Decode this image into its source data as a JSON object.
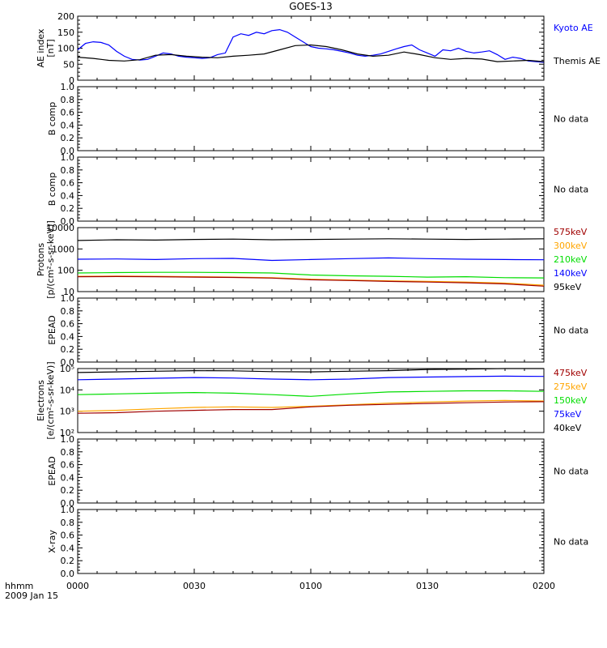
{
  "title": "GOES-13",
  "time_axis": {
    "label_top": "hhmm",
    "label_bottom": "2009 Jan 15",
    "ticks": [
      "0000",
      "0030",
      "0100",
      "0130",
      "0200"
    ],
    "range_minutes": [
      0,
      120
    ]
  },
  "colors": {
    "black": "#000000",
    "blue": "#0000ff",
    "green": "#00dd00",
    "orange": "#ffa500",
    "darkred": "#a00000"
  },
  "panels": [
    {
      "id": "ae",
      "ylabel": [
        "AE index",
        "[nT]"
      ],
      "scale": "linear",
      "ylim": [
        0,
        200
      ],
      "yticks": [
        "0",
        "50",
        "100",
        "150",
        "200"
      ],
      "legend": [
        {
          "text": "Kyoto AE",
          "color": "#0000ff"
        },
        {
          "text": "Themis AE",
          "color": "#000000"
        }
      ]
    },
    {
      "id": "bcomp1",
      "ylabel": [
        "B comp"
      ],
      "scale": "linear",
      "ylim": [
        0,
        1
      ],
      "yticks": [
        "0.0",
        "0.2",
        "0.4",
        "0.6",
        "0.8",
        "1.0"
      ],
      "nodata": "No data"
    },
    {
      "id": "bcomp2",
      "ylabel": [
        "B comp"
      ],
      "scale": "linear",
      "ylim": [
        0,
        1
      ],
      "yticks": [
        "0.0",
        "0.2",
        "0.4",
        "0.6",
        "0.8",
        "1.0"
      ],
      "nodata": "No data"
    },
    {
      "id": "protons",
      "ylabel": [
        "Protons",
        "[p/(cm²-s-sr-keV)]"
      ],
      "scale": "log",
      "ylim": [
        10,
        10000
      ],
      "yticks": [
        "10",
        "100",
        "1000",
        "10000"
      ],
      "legend": [
        {
          "text": "575keV",
          "color": "#a00000"
        },
        {
          "text": "300keV",
          "color": "#ffa500"
        },
        {
          "text": "210keV",
          "color": "#00dd00"
        },
        {
          "text": "140keV",
          "color": "#0000ff"
        },
        {
          "text": "95keV",
          "color": "#000000"
        }
      ]
    },
    {
      "id": "epead1",
      "ylabel": [
        "EPEAD"
      ],
      "scale": "linear",
      "ylim": [
        0,
        1
      ],
      "yticks": [
        "0.0",
        "0.2",
        "0.4",
        "0.6",
        "0.8",
        "1.0"
      ],
      "nodata": "No data"
    },
    {
      "id": "electrons",
      "ylabel": [
        "Electrons",
        "[e/(cm²-s-sr-keV)]"
      ],
      "scale": "log",
      "ylim": [
        100,
        100000
      ],
      "yticks": [
        "10²",
        "10³",
        "10⁴",
        "10⁵"
      ],
      "legend": [
        {
          "text": "475keV",
          "color": "#a00000"
        },
        {
          "text": "275keV",
          "color": "#ffa500"
        },
        {
          "text": "150keV",
          "color": "#00dd00"
        },
        {
          "text": "75keV",
          "color": "#0000ff"
        },
        {
          "text": "40keV",
          "color": "#000000"
        }
      ]
    },
    {
      "id": "epead2",
      "ylabel": [
        "EPEAD"
      ],
      "scale": "linear",
      "ylim": [
        0,
        1
      ],
      "yticks": [
        "0.0",
        "0.2",
        "0.4",
        "0.6",
        "0.8",
        "1.0"
      ],
      "nodata": "No data"
    },
    {
      "id": "xray",
      "ylabel": [
        "X-ray"
      ],
      "scale": "linear",
      "ylim": [
        0,
        1
      ],
      "yticks": [
        "0.0",
        "0.2",
        "0.4",
        "0.6",
        "0.8",
        "1.0"
      ],
      "nodata": "No data"
    }
  ],
  "chart_data": {
    "type": "line",
    "title": "GOES-13",
    "x_unit": "minutes after 0000 UT",
    "panels": [
      {
        "panel": "ae",
        "series": [
          {
            "name": "Kyoto AE",
            "color": "#0000ff",
            "x": [
              0,
              2,
              4,
              6,
              8,
              10,
              12,
              14,
              16,
              18,
              20,
              22,
              24,
              26,
              28,
              30,
              32,
              34,
              36,
              38,
              40,
              42,
              44,
              46,
              48,
              50,
              52,
              54,
              56,
              58,
              60,
              62,
              64,
              66,
              68,
              70,
              72,
              74,
              76,
              78,
              80,
              82,
              84,
              86,
              88,
              90,
              92,
              94,
              96,
              98,
              100,
              102,
              104,
              106,
              108,
              110,
              112,
              114,
              116,
              118,
              120
            ],
            "y": [
              95,
              115,
              120,
              118,
              110,
              90,
              75,
              65,
              63,
              65,
              75,
              85,
              82,
              75,
              72,
              70,
              68,
              70,
              80,
              85,
              135,
              145,
              140,
              150,
              145,
              155,
              158,
              150,
              135,
              120,
              105,
              100,
              98,
              95,
              90,
              85,
              78,
              75,
              78,
              82,
              90,
              98,
              105,
              110,
              95,
              85,
              75,
              95,
              92,
              100,
              90,
              85,
              88,
              92,
              80,
              65,
              72,
              68,
              60,
              58,
              56
            ]
          },
          {
            "name": "Themis AE",
            "color": "#000000",
            "x": [
              0,
              4,
              8,
              12,
              16,
              20,
              24,
              28,
              32,
              36,
              40,
              44,
              48,
              52,
              56,
              60,
              64,
              68,
              72,
              76,
              80,
              84,
              88,
              92,
              96,
              100,
              104,
              108,
              112,
              116,
              120
            ],
            "y": [
              72,
              68,
              62,
              60,
              64,
              78,
              80,
              75,
              72,
              70,
              75,
              78,
              82,
              95,
              108,
              110,
              105,
              95,
              82,
              75,
              78,
              88,
              80,
              70,
              65,
              68,
              66,
              58,
              60,
              62,
              58
            ]
          }
        ]
      },
      {
        "panel": "protons",
        "series": [
          {
            "name": "95keV",
            "color": "#000000",
            "x": [
              0,
              10,
              20,
              30,
              40,
              50,
              60,
              70,
              80,
              90,
              100,
              110,
              120
            ],
            "y": [
              2500,
              2700,
              2600,
              2800,
              2900,
              2700,
              2800,
              2900,
              3000,
              2900,
              2800,
              2900,
              3000
            ]
          },
          {
            "name": "140keV",
            "color": "#0000ff",
            "x": [
              0,
              10,
              20,
              30,
              40,
              50,
              60,
              70,
              80,
              90,
              100,
              110,
              120
            ],
            "y": [
              330,
              340,
              320,
              350,
              360,
              290,
              320,
              350,
              380,
              350,
              330,
              320,
              310
            ]
          },
          {
            "name": "210keV",
            "color": "#00dd00",
            "x": [
              0,
              10,
              20,
              30,
              40,
              50,
              60,
              70,
              80,
              90,
              100,
              110,
              120
            ],
            "y": [
              75,
              78,
              80,
              80,
              78,
              75,
              60,
              55,
              52,
              48,
              50,
              45,
              44
            ]
          },
          {
            "name": "300keV",
            "color": "#ffa500",
            "x": [
              0,
              10,
              20,
              30,
              40,
              50,
              60,
              70,
              80,
              90,
              100,
              110,
              120
            ],
            "y": [
              52,
              53,
              52,
              50,
              48,
              45,
              38,
              35,
              32,
              30,
              28,
              25,
              20
            ]
          },
          {
            "name": "575keV",
            "color": "#a00000",
            "x": [
              0,
              10,
              20,
              30,
              40,
              50,
              60,
              70,
              80,
              90,
              100,
              110,
              120
            ],
            "y": [
              50,
              51,
              50,
              48,
              46,
              43,
              36,
              33,
              30,
              28,
              26,
              23,
              18
            ]
          }
        ]
      },
      {
        "panel": "electrons",
        "series": [
          {
            "name": "40keV",
            "color": "#000000",
            "x": [
              0,
              10,
              20,
              30,
              40,
              50,
              60,
              70,
              80,
              90,
              100,
              110,
              120
            ],
            "y": [
              65000,
              70000,
              75000,
              80000,
              78000,
              72000,
              70000,
              75000,
              80000,
              90000,
              95000,
              100000,
              100000
            ]
          },
          {
            "name": "75keV",
            "color": "#0000ff",
            "x": [
              0,
              10,
              20,
              30,
              40,
              50,
              60,
              70,
              80,
              90,
              100,
              110,
              120
            ],
            "y": [
              30000,
              32000,
              35000,
              38000,
              36000,
              32000,
              30000,
              32000,
              38000,
              40000,
              42000,
              44000,
              43000
            ]
          },
          {
            "name": "150keV",
            "color": "#00dd00",
            "x": [
              0,
              10,
              20,
              30,
              40,
              50,
              60,
              70,
              80,
              90,
              100,
              110,
              120
            ],
            "y": [
              6000,
              6500,
              7000,
              7500,
              7000,
              6000,
              5000,
              6500,
              8000,
              8500,
              9000,
              9000,
              8500
            ]
          },
          {
            "name": "275keV",
            "color": "#ffa500",
            "x": [
              0,
              10,
              20,
              30,
              40,
              50,
              60,
              70,
              80,
              90,
              100,
              110,
              120
            ],
            "y": [
              1000,
              1100,
              1300,
              1500,
              1600,
              1500,
              1700,
              2000,
              2400,
              2700,
              3000,
              3200,
              3000
            ]
          },
          {
            "name": "475keV",
            "color": "#a00000",
            "x": [
              0,
              10,
              20,
              30,
              40,
              50,
              60,
              70,
              80,
              90,
              100,
              110,
              120
            ],
            "y": [
              800,
              850,
              1000,
              1100,
              1200,
              1200,
              1600,
              1900,
              2100,
              2300,
              2500,
              2700,
              2800
            ]
          }
        ]
      }
    ]
  }
}
